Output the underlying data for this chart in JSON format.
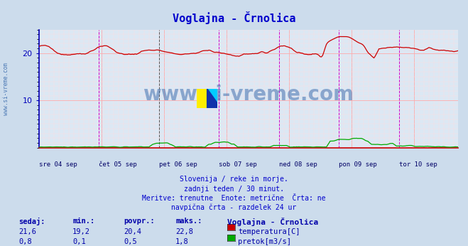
{
  "title": "Voglajna - Črnolica",
  "bg_color": "#ccdcec",
  "plot_bg_color": "#dce8f4",
  "title_color": "#0000cc",
  "axis_color": "#0000bb",
  "grid_color_major": "#ffaaaa",
  "grid_color_minor": "#ffcccc",
  "vline_color_solid": "#cc00cc",
  "vline_color_dashed": "#333333",
  "xlabel_color": "#000066",
  "ylim": [
    0,
    25
  ],
  "yticks": [
    10,
    20
  ],
  "num_points": 336,
  "days": [
    "sre 04 sep",
    "čet 05 sep",
    "pet 06 sep",
    "sob 07 sep",
    "ned 08 sep",
    "pon 09 sep",
    "tor 10 sep"
  ],
  "day_positions": [
    0,
    48,
    96,
    144,
    192,
    240,
    288
  ],
  "subtitle_lines": [
    "Slovenija / reke in morje.",
    "zadnji teden / 30 minut.",
    "Meritve: trenutne  Enote: metrične  Črta: ne",
    "navpična črta - razdelek 24 ur"
  ],
  "station_name": "Voglajna - Črnolica",
  "series": [
    {
      "name": "temperatura[C]",
      "color": "#cc0000",
      "sedaj": "21,6",
      "min": "19,2",
      "povpr": "20,4",
      "maks": "22,8"
    },
    {
      "name": "pretok[m3/s]",
      "color": "#00aa00",
      "sedaj": "0,8",
      "min": "0,1",
      "povpr": "0,5",
      "maks": "1,8"
    }
  ],
  "watermark": "www.si-vreme.com",
  "watermark_color": "#3366aa",
  "left_label": "www.si-vreme.com",
  "left_label_color": "#3366aa"
}
